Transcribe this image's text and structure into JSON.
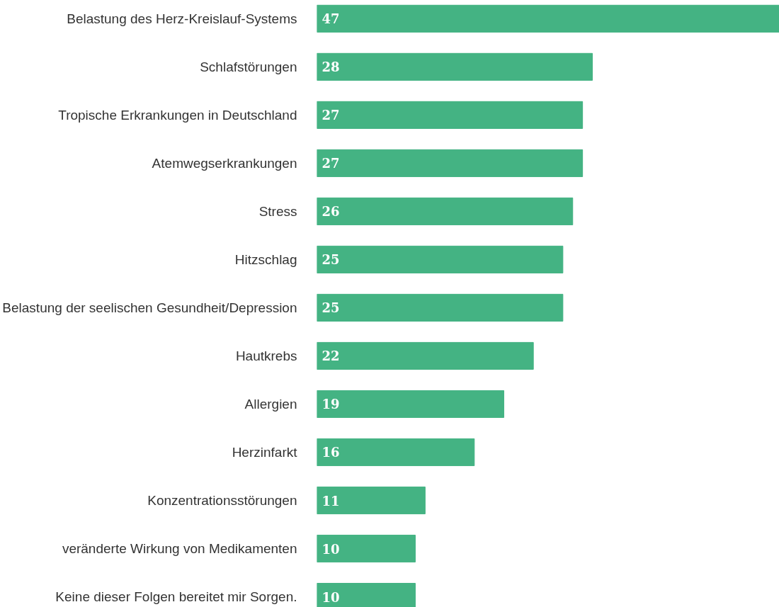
{
  "chart_data": {
    "type": "bar",
    "orientation": "horizontal",
    "data_labels": true,
    "color": "#44b383",
    "categories": [
      "Belastung des Herz-Kreislauf-Systems",
      "Schlafstörungen",
      "Tropische Erkrankungen in Deutschland",
      "Atemwegserkrankungen",
      "Stress",
      "Hitzschlag",
      "Belastung der seelischen Gesundheit/Depression",
      "Hautkrebs",
      "Allergien",
      "Herzinfarkt",
      "Konzentrationsstörungen",
      "veränderte Wirkung von Medikamenten",
      "Keine dieser Folgen bereitet mir Sorgen."
    ],
    "values": [
      47,
      28,
      27,
      27,
      26,
      25,
      25,
      22,
      19,
      16,
      11,
      10,
      10
    ]
  }
}
